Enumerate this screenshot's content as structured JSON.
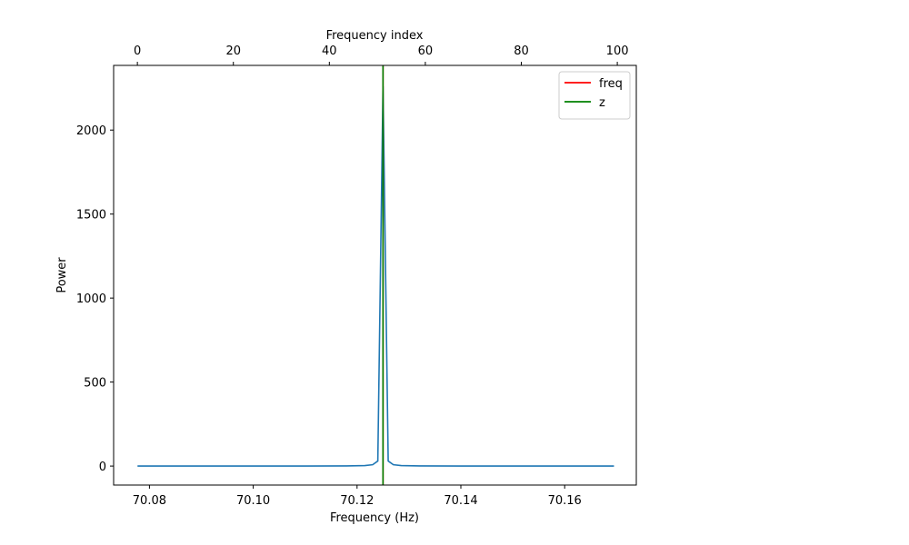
{
  "chart_data": {
    "type": "line",
    "xlabel": "Frequency (Hz)",
    "ylabel": "Power",
    "top_xlabel": "Frequency index",
    "xlim": [
      70.0731,
      70.1738
    ],
    "ylim": [
      -113,
      2385
    ],
    "top_xlim": [
      -4.95,
      103.96
    ],
    "x_ticks": [
      {
        "value": 70.08,
        "label": "70.08"
      },
      {
        "value": 70.1,
        "label": "70.10"
      },
      {
        "value": 70.12,
        "label": "70.12"
      },
      {
        "value": 70.14,
        "label": "70.14"
      },
      {
        "value": 70.16,
        "label": "70.16"
      }
    ],
    "y_ticks": [
      {
        "value": 0,
        "label": "0"
      },
      {
        "value": 500,
        "label": "500"
      },
      {
        "value": 1000,
        "label": "1000"
      },
      {
        "value": 1500,
        "label": "1500"
      },
      {
        "value": 2000,
        "label": "2000"
      }
    ],
    "top_ticks": [
      {
        "value": 0,
        "label": "0"
      },
      {
        "value": 20,
        "label": "20"
      },
      {
        "value": 40,
        "label": "40"
      },
      {
        "value": 60,
        "label": "60"
      },
      {
        "value": 80,
        "label": "80"
      },
      {
        "value": 100,
        "label": "100"
      }
    ],
    "series": [
      {
        "color": "#1f77b4",
        "x": [
          70.0777,
          70.09,
          70.1,
          70.11,
          70.118,
          70.1215,
          70.123,
          70.124,
          70.125,
          70.126,
          70.127,
          70.1285,
          70.132,
          70.14,
          70.15,
          70.16,
          70.1695
        ],
        "y": [
          0,
          0,
          0,
          0,
          1,
          3,
          8,
          30,
          2260,
          30,
          8,
          3,
          1,
          0,
          0,
          0,
          0
        ]
      }
    ],
    "vlines": [
      {
        "name": "freq",
        "x": 70.125,
        "color": "#ff0000"
      },
      {
        "name": "z",
        "x": 70.125,
        "color": "#008000"
      }
    ],
    "legend": {
      "placement": "top-right",
      "entries": [
        {
          "label": "freq",
          "color": "#ff0000"
        },
        {
          "label": "z",
          "color": "#008000"
        }
      ]
    },
    "grid": false
  }
}
